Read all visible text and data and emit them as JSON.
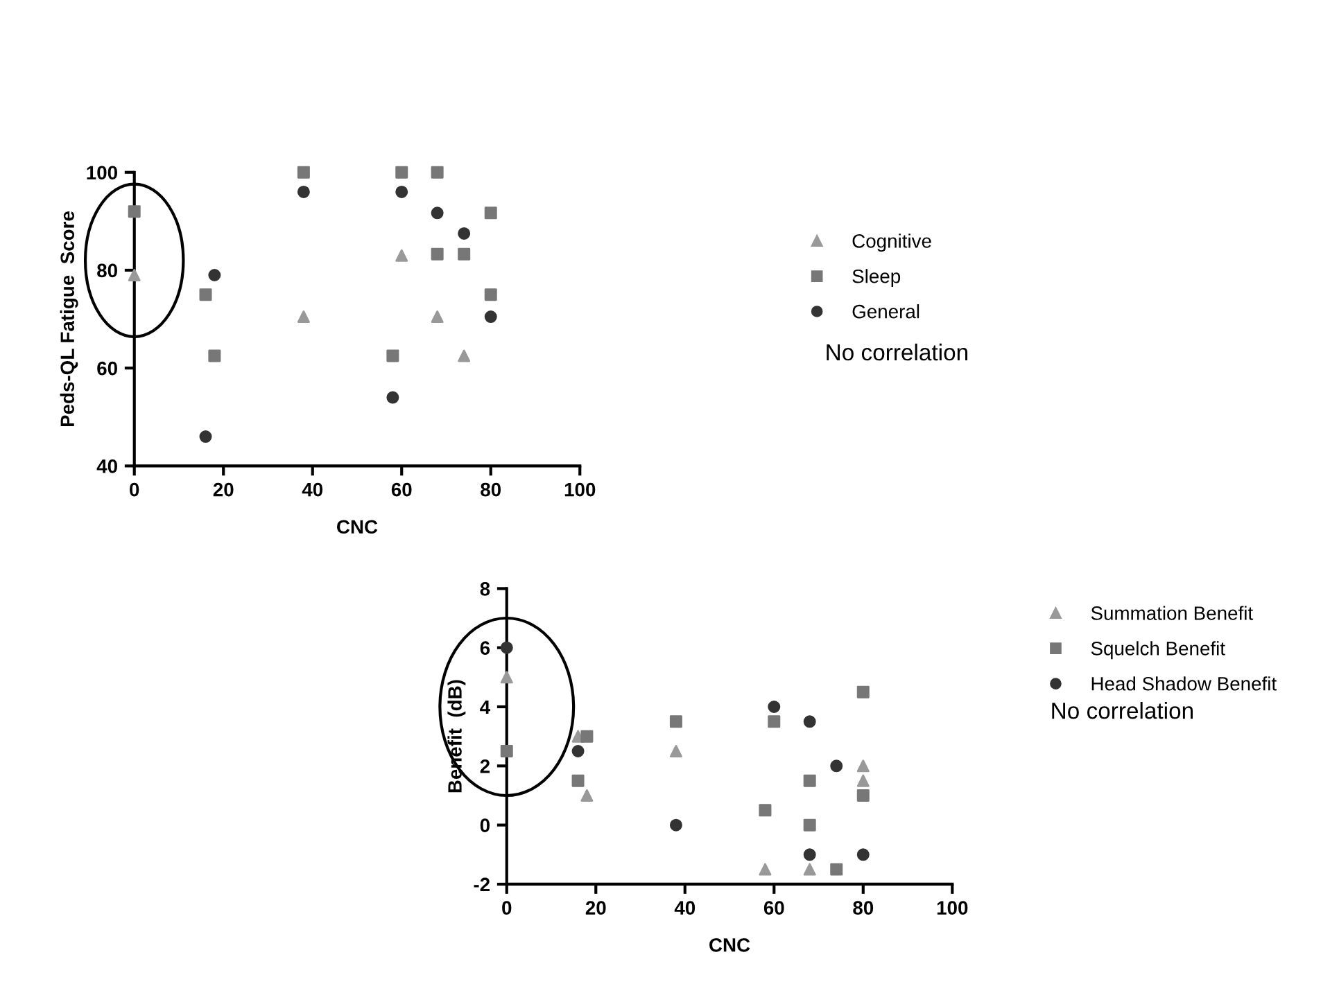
{
  "chart_data": [
    {
      "type": "scatter",
      "xlabel": "CNC",
      "ylabel": "Peds-QL Fatigue  Score",
      "xlim": [
        0,
        100
      ],
      "ylim": [
        40,
        100
      ],
      "xticks": [
        0,
        20,
        40,
        60,
        80,
        100
      ],
      "yticks": [
        40,
        60,
        80,
        100
      ],
      "grid": false,
      "legend": "right",
      "annotations": [
        "No correlation"
      ],
      "series": [
        {
          "name": "Cognitive",
          "color": "#999999",
          "marker": "triangle",
          "x": [
            0,
            38,
            60,
            68,
            74
          ],
          "values": [
            79,
            70.5,
            83,
            70.5,
            62.5
          ]
        },
        {
          "name": "Sleep",
          "color": "#777777",
          "marker": "square",
          "x": [
            0,
            16,
            18,
            38,
            58,
            60,
            68,
            68,
            74,
            80,
            80
          ],
          "values": [
            92,
            75,
            62.5,
            100,
            62.5,
            100,
            100,
            83.3,
            83.3,
            91.7,
            75
          ]
        },
        {
          "name": "General",
          "color": "#333333",
          "marker": "circle",
          "x": [
            18,
            16,
            38,
            58,
            60,
            68,
            74,
            80
          ],
          "values": [
            79,
            46,
            96,
            54,
            96,
            91.7,
            87.5,
            70.5
          ]
        }
      ]
    },
    {
      "type": "scatter",
      "xlabel": "CNC",
      "ylabel": "Benefit  (dB)",
      "xlim": [
        0,
        100
      ],
      "ylim": [
        -2,
        8
      ],
      "xticks": [
        0,
        20,
        40,
        60,
        80,
        100
      ],
      "yticks": [
        {
          "value": -2,
          "label": "-2"
        },
        0,
        2,
        4,
        6,
        8
      ],
      "grid": false,
      "legend": "right",
      "annotations": [
        "No correlation"
      ],
      "series": [
        {
          "name": "Summation Benefit",
          "color": "#999999",
          "marker": "triangle",
          "x": [
            0,
            16,
            18,
            38,
            58,
            68,
            80,
            80
          ],
          "values": [
            5,
            3,
            1,
            2.5,
            -1.5,
            -1.5,
            2,
            1.5
          ]
        },
        {
          "name": "Squelch Benefit",
          "color": "#777777",
          "marker": "square",
          "x": [
            0,
            18,
            16,
            38,
            58,
            60,
            68,
            68,
            74,
            80,
            80
          ],
          "values": [
            2.5,
            3,
            1.5,
            3.5,
            0.5,
            3.5,
            1.5,
            0,
            -1.5,
            4.5,
            1
          ]
        },
        {
          "name": "Head Shadow Benefit",
          "color": "#333333",
          "marker": "circle",
          "x": [
            0,
            16,
            38,
            60,
            68,
            68,
            74,
            80
          ],
          "values": [
            6,
            2.5,
            0,
            4,
            3.5,
            -1,
            2,
            -1
          ]
        }
      ]
    }
  ]
}
